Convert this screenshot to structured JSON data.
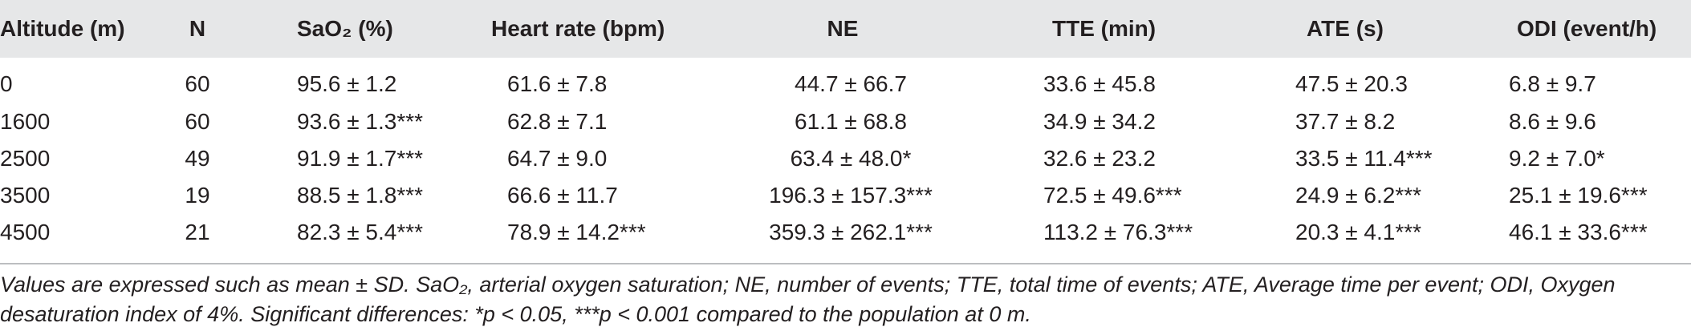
{
  "table": {
    "headers": [
      "Altitude (m)",
      "N",
      "SaO₂ (%)",
      "Heart rate (bpm)",
      "NE",
      "TTE (min)",
      "ATE (s)",
      "ODI (event/h)"
    ],
    "rows": [
      [
        "0",
        "60",
        "95.6 ± 1.2",
        "61.6 ± 7.8",
        "44.7 ± 66.7",
        "33.6 ± 45.8",
        "47.5 ± 20.3",
        "6.8 ± 9.7"
      ],
      [
        "1600",
        "60",
        "93.6 ± 1.3***",
        "62.8 ± 7.1",
        "61.1 ± 68.8",
        "34.9 ± 34.2",
        "37.7 ± 8.2",
        "8.6 ± 9.6"
      ],
      [
        "2500",
        "49",
        "91.9 ± 1.7***",
        "64.7 ± 9.0",
        "63.4 ± 48.0*",
        "32.6 ± 23.2",
        "33.5 ± 11.4***",
        "9.2 ± 7.0*"
      ],
      [
        "3500",
        "19",
        "88.5 ± 1.8***",
        "66.6 ± 11.7",
        "196.3 ± 157.3***",
        "72.5 ± 49.6***",
        "24.9 ± 6.2***",
        "25.1 ± 19.6***"
      ],
      [
        "4500",
        "21",
        "82.3 ± 5.4***",
        "78.9 ± 14.2***",
        "359.3 ± 262.1***",
        "113.2 ± 76.3***",
        "20.3 ± 4.1***",
        "46.1 ± 33.6***"
      ]
    ]
  },
  "footnote": [
    "Values are expressed such as mean ± SD. SaO₂, arterial oxygen saturation; NE, number of events; TTE, total time of events; ATE, Average time per event; ODI, Oxygen",
    "desaturation index of 4%. Significant differences: *p < 0.05, ***p < 0.001 compared to the population at 0 m."
  ]
}
